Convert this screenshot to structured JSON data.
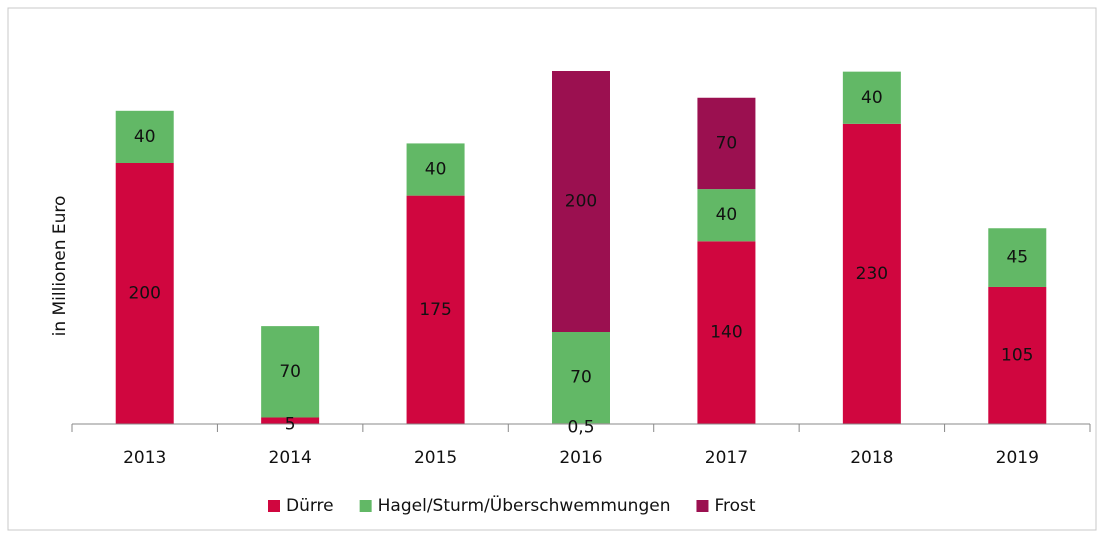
{
  "chart_data": {
    "type": "stacked_bar",
    "y_label": "in Millionen Euro",
    "categories": [
      "2013",
      "2014",
      "2015",
      "2016",
      "2017",
      "2018",
      "2019"
    ],
    "series": [
      {
        "name": "Dürre",
        "color": "#d0063f",
        "values": [
          200,
          5,
          175,
          0.5,
          140,
          230,
          105
        ],
        "value_labels": [
          "200",
          "5",
          "175",
          "0,5",
          "140",
          "230",
          "105"
        ]
      },
      {
        "name": "Hagel/Sturm/Überschwemmungen",
        "color": "#62b866",
        "values": [
          40,
          70,
          40,
          70,
          40,
          40,
          45
        ]
      },
      {
        "name": "Frost",
        "color": "#9b1050",
        "values": [
          null,
          null,
          null,
          200,
          70,
          null,
          null
        ]
      }
    ],
    "ylim": [
      0,
      300
    ],
    "legend": "bottom"
  }
}
